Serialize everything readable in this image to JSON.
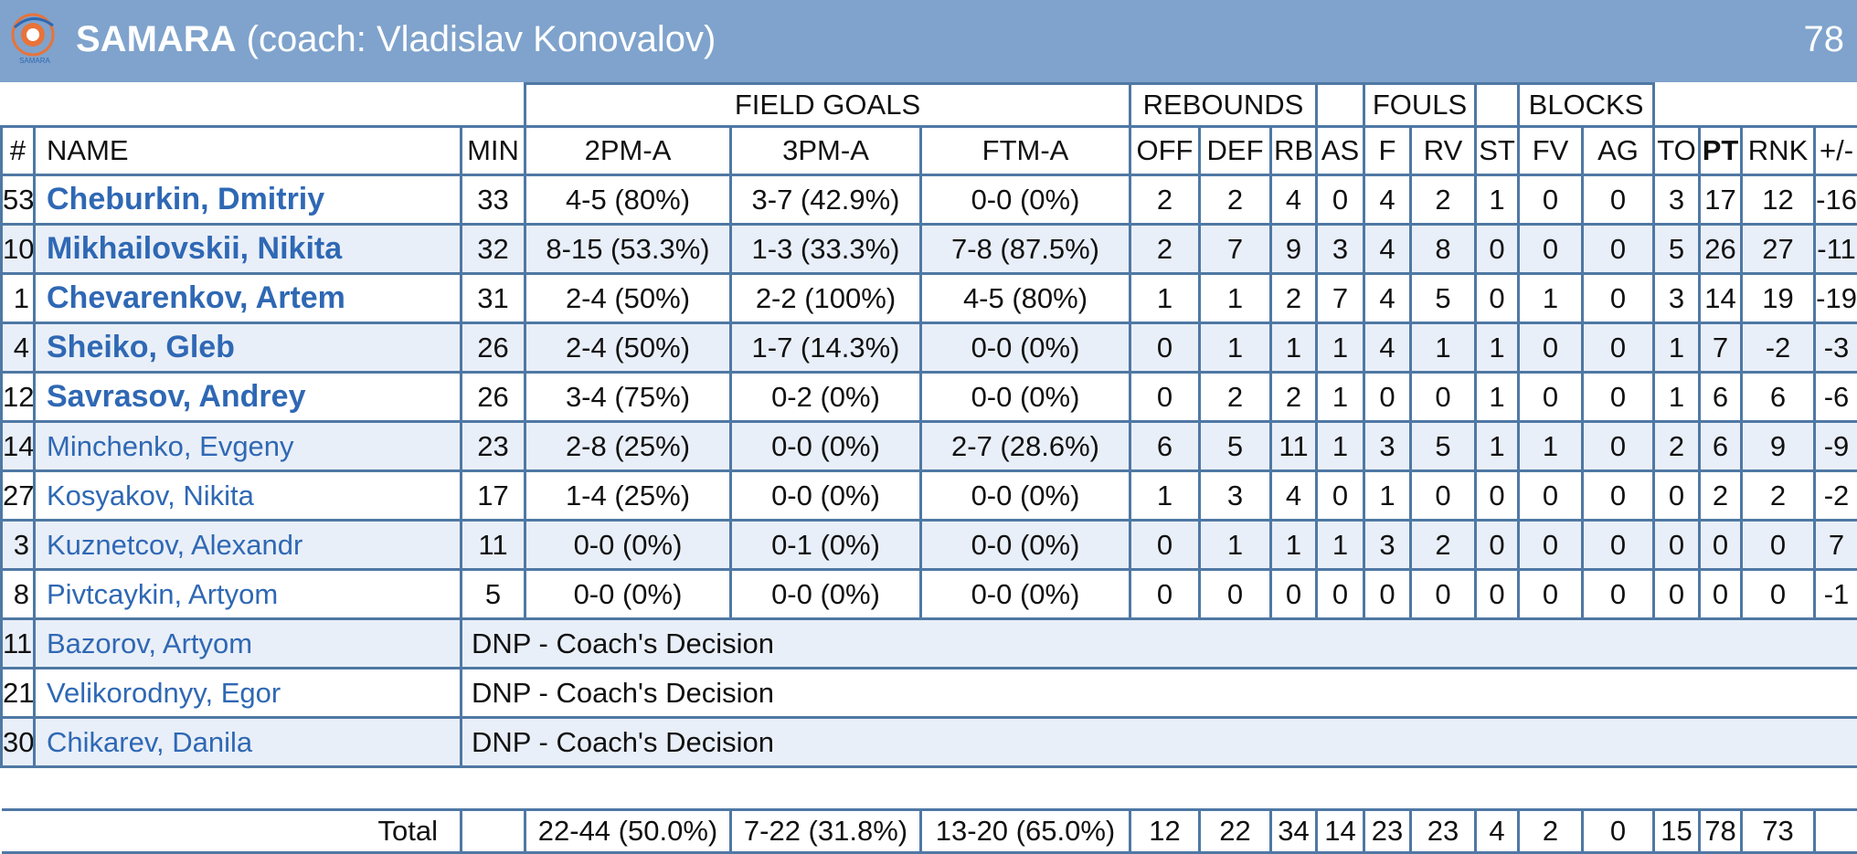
{
  "team": {
    "name": "SAMARA",
    "coach": "(coach: Vladislav Konovalov)",
    "score": "78",
    "logo_text": "SAMARA"
  },
  "groups": {
    "field_goals": "FIELD GOALS",
    "rebounds": "REBOUNDS",
    "fouls": "FOULS",
    "blocks": "BLOCKS"
  },
  "columns": [
    "#",
    "NAME",
    "MIN",
    "2PM-A",
    "3PM-A",
    "FTM-A",
    "OFF",
    "DEF",
    "RB",
    "AS",
    "F",
    "RV",
    "ST",
    "FV",
    "AG",
    "TO",
    "PT",
    "RNK",
    "+/-"
  ],
  "players": [
    {
      "num": "53",
      "name": "Cheburkin, Dmitriy",
      "starter": true,
      "stats": [
        "33",
        "4-5 (80%)",
        "3-7 (42.9%)",
        "0-0 (0%)",
        "2",
        "2",
        "4",
        "0",
        "4",
        "2",
        "1",
        "0",
        "0",
        "3",
        "17",
        "12",
        "-16"
      ]
    },
    {
      "num": "10",
      "name": "Mikhailovskii, Nikita",
      "starter": true,
      "stats": [
        "32",
        "8-15 (53.3%)",
        "1-3 (33.3%)",
        "7-8 (87.5%)",
        "2",
        "7",
        "9",
        "3",
        "4",
        "8",
        "0",
        "0",
        "0",
        "5",
        "26",
        "27",
        "-11"
      ]
    },
    {
      "num": "1",
      "name": "Chevarenkov, Artem",
      "starter": true,
      "stats": [
        "31",
        "2-4 (50%)",
        "2-2 (100%)",
        "4-5 (80%)",
        "1",
        "1",
        "2",
        "7",
        "4",
        "5",
        "0",
        "1",
        "0",
        "3",
        "14",
        "19",
        "-19"
      ]
    },
    {
      "num": "4",
      "name": "Sheiko, Gleb",
      "starter": true,
      "stats": [
        "26",
        "2-4 (50%)",
        "1-7 (14.3%)",
        "0-0 (0%)",
        "0",
        "1",
        "1",
        "1",
        "4",
        "1",
        "1",
        "0",
        "0",
        "1",
        "7",
        "-2",
        "-3"
      ]
    },
    {
      "num": "12",
      "name": "Savrasov, Andrey",
      "starter": true,
      "stats": [
        "26",
        "3-4 (75%)",
        "0-2 (0%)",
        "0-0 (0%)",
        "0",
        "2",
        "2",
        "1",
        "0",
        "0",
        "1",
        "0",
        "0",
        "1",
        "6",
        "6",
        "-6"
      ]
    },
    {
      "num": "14",
      "name": "Minchenko, Evgeny",
      "starter": false,
      "stats": [
        "23",
        "2-8 (25%)",
        "0-0 (0%)",
        "2-7 (28.6%)",
        "6",
        "5",
        "11",
        "1",
        "3",
        "5",
        "1",
        "1",
        "0",
        "2",
        "6",
        "9",
        "-9"
      ]
    },
    {
      "num": "27",
      "name": "Kosyakov, Nikita",
      "starter": false,
      "stats": [
        "17",
        "1-4 (25%)",
        "0-0 (0%)",
        "0-0 (0%)",
        "1",
        "3",
        "4",
        "0",
        "1",
        "0",
        "0",
        "0",
        "0",
        "0",
        "2",
        "2",
        "-2"
      ]
    },
    {
      "num": "3",
      "name": "Kuznetcov, Alexandr",
      "starter": false,
      "stats": [
        "11",
        "0-0 (0%)",
        "0-1 (0%)",
        "0-0 (0%)",
        "0",
        "1",
        "1",
        "1",
        "3",
        "2",
        "0",
        "0",
        "0",
        "0",
        "0",
        "0",
        "7"
      ]
    },
    {
      "num": "8",
      "name": "Pivtcaykin, Artyom",
      "starter": false,
      "stats": [
        "5",
        "0-0 (0%)",
        "0-0 (0%)",
        "0-0 (0%)",
        "0",
        "0",
        "0",
        "0",
        "0",
        "0",
        "0",
        "0",
        "0",
        "0",
        "0",
        "0",
        "-1"
      ]
    }
  ],
  "dnp_players": [
    {
      "num": "11",
      "name": "Bazorov, Artyom",
      "note": "DNP - Coach's Decision"
    },
    {
      "num": "21",
      "name": "Velikorodnyy, Egor",
      "note": "DNP - Coach's Decision"
    },
    {
      "num": "30",
      "name": "Chikarev, Danila",
      "note": "DNP - Coach's Decision"
    }
  ],
  "total": {
    "label": "Total",
    "stats": [
      "",
      "22-44 (50.0%)",
      "7-22 (31.8%)",
      "13-20 (65.0%)",
      "12",
      "22",
      "34",
      "14",
      "23",
      "23",
      "4",
      "2",
      "0",
      "15",
      "78",
      "73",
      ""
    ]
  },
  "colors": {
    "header_bg": "#7fa3cc",
    "grid_line": "#4f78a4",
    "name_link": "#2f68b4",
    "alt_row": "#e9eff8"
  }
}
